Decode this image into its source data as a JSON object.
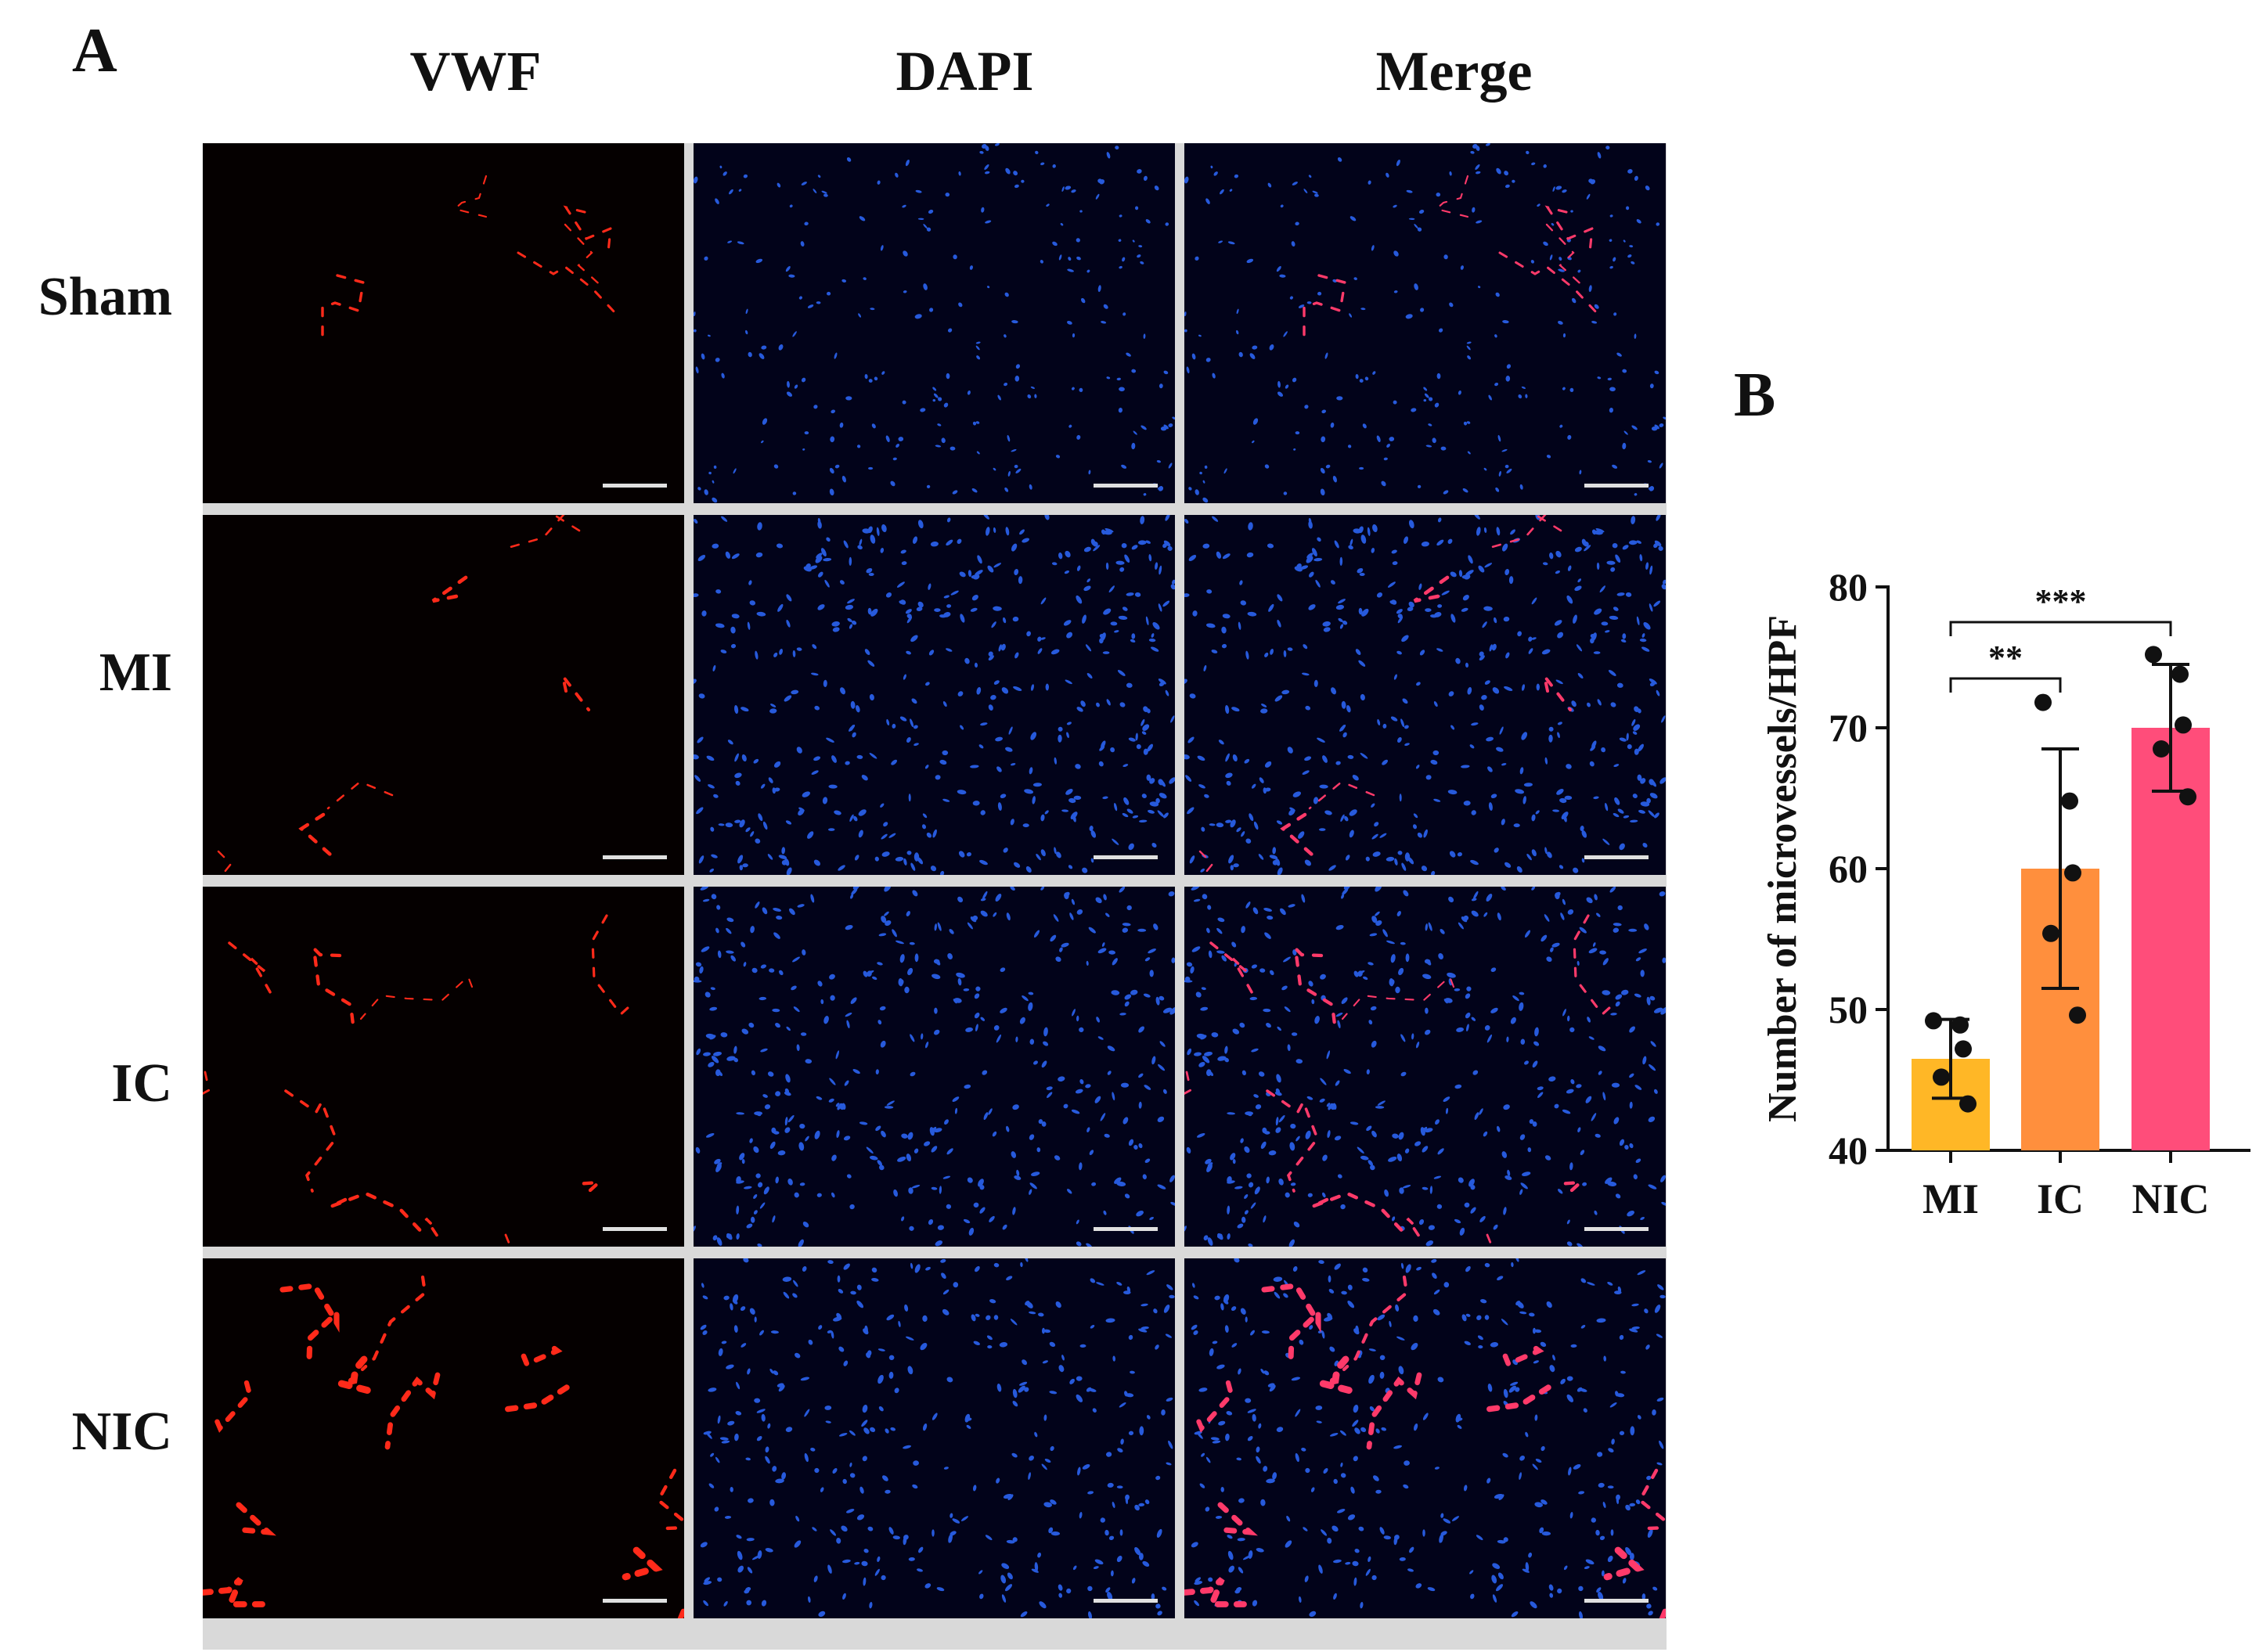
{
  "panel_a": {
    "letter": "A",
    "columns": [
      "VWF",
      "DAPI",
      "Merge"
    ],
    "rows": [
      "Sham",
      "MI",
      "IC",
      "NIC"
    ]
  },
  "panel_b": {
    "letter": "B"
  },
  "colors": {
    "vwf": "#ff2a1a",
    "dapi": "#2f6bff",
    "merge_red": "#ff3a6a",
    "bar_mi": "#ffb726",
    "bar_ic": "#ff8f3d",
    "bar_nic": "#ff4d7a"
  },
  "chart_data": {
    "type": "bar",
    "categories": [
      "MI",
      "IC",
      "NIC"
    ],
    "values": [
      46.5,
      60.0,
      70.0
    ],
    "error": [
      2.8,
      8.5,
      4.5
    ],
    "points": [
      [
        49.2,
        48.9,
        47.2,
        45.2,
        43.3
      ],
      [
        71.8,
        64.8,
        59.7,
        55.4,
        49.6
      ],
      [
        75.2,
        73.8,
        70.2,
        68.5,
        65.1
      ]
    ],
    "colors": [
      "#ffb726",
      "#ff8f3d",
      "#ff4d7a"
    ],
    "ylabel": "Number of microvessels/HPF",
    "xlabel": "",
    "ylim": [
      40,
      80
    ],
    "yticks": [
      40,
      50,
      60,
      70,
      80
    ],
    "significance": [
      {
        "from": "MI",
        "to": "IC",
        "label": "**"
      },
      {
        "from": "MI",
        "to": "NIC",
        "label": "***"
      }
    ],
    "grid": false
  }
}
